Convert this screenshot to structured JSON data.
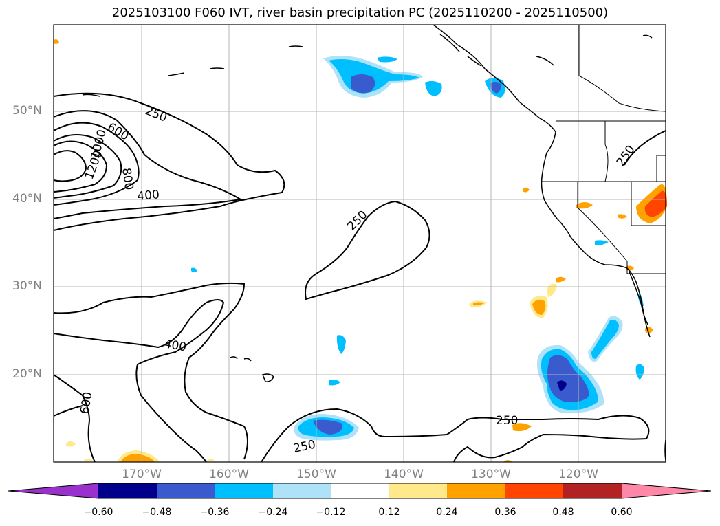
{
  "title": "2025103100 F060 IVT, river basin precipitation PC (2025110200 - 2025110500)",
  "map": {
    "lat_labels": [
      "50°N",
      "40°N",
      "30°N",
      "20°N"
    ],
    "lon_labels": [
      "170°W",
      "160°W",
      "150°W",
      "140°W",
      "130°W",
      "120°W"
    ],
    "contour_labels": [
      "250",
      "600",
      "1000",
      "800",
      "1200",
      "400",
      "250",
      "400",
      "600",
      "250",
      "250",
      "250"
    ]
  },
  "colorbar": {
    "colors": [
      "#9932cc",
      "#00008b",
      "#3a5bcd",
      "#00bfff",
      "#ade2f8",
      "#ffffff",
      "#ffe98a",
      "#ffa200",
      "#ff4500",
      "#b22222",
      "#ff88a8"
    ],
    "tick_labels": [
      "−0.60",
      "−0.48",
      "−0.36",
      "−0.24",
      "−0.12",
      "0.12",
      "0.24",
      "0.36",
      "0.48",
      "0.60"
    ]
  }
}
